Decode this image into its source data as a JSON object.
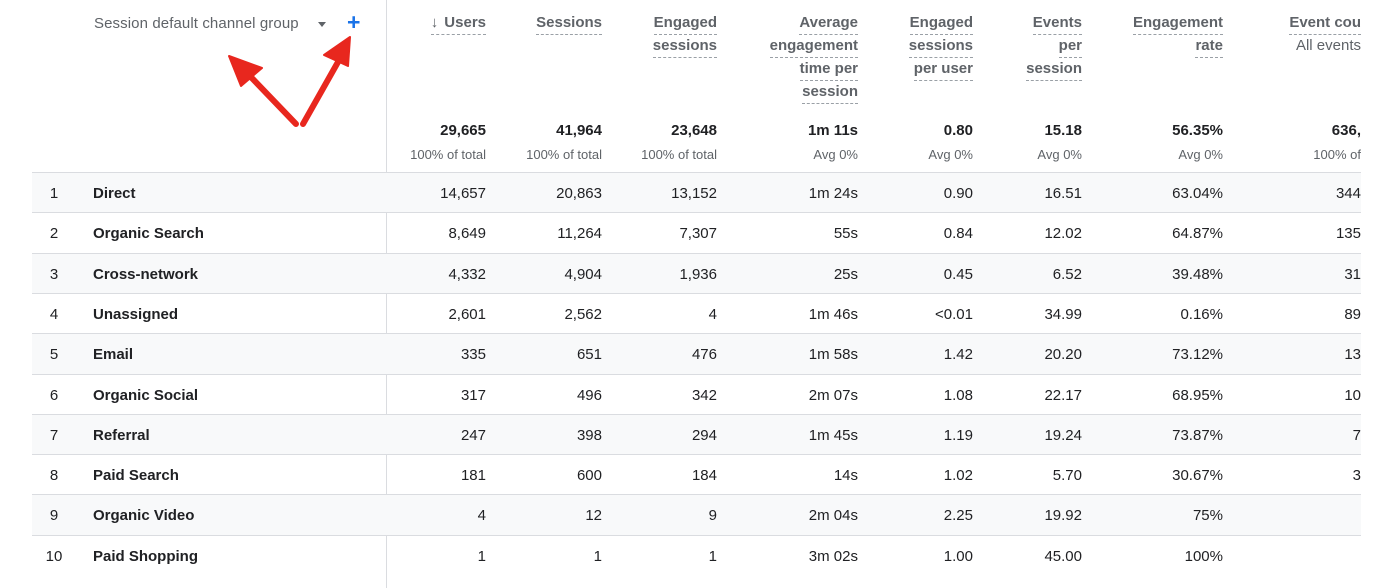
{
  "dimension_header": "Session default channel group",
  "metric_headers": [
    {
      "lines": [
        "Users"
      ],
      "sorted": true
    },
    {
      "lines": [
        "Sessions"
      ]
    },
    {
      "lines": [
        "Engaged",
        "sessions"
      ]
    },
    {
      "lines": [
        "Average",
        "engagement",
        "time per",
        "session"
      ]
    },
    {
      "lines": [
        "Engaged",
        "sessions",
        "per user"
      ]
    },
    {
      "lines": [
        "Events",
        "per",
        "session"
      ]
    },
    {
      "lines": [
        "Engagement",
        "rate"
      ]
    },
    {
      "lines": [
        "Event cou"
      ],
      "sub": "All events"
    }
  ],
  "totals": [
    {
      "value": "29,665",
      "sub": "100% of total"
    },
    {
      "value": "41,964",
      "sub": "100% of total"
    },
    {
      "value": "23,648",
      "sub": "100% of total"
    },
    {
      "value": "1m 11s",
      "sub": "Avg 0%"
    },
    {
      "value": "0.80",
      "sub": "Avg 0%"
    },
    {
      "value": "15.18",
      "sub": "Avg 0%"
    },
    {
      "value": "56.35%",
      "sub": "Avg 0%"
    },
    {
      "value": "636,",
      "sub": "100% of"
    }
  ],
  "rows": [
    {
      "index": "1",
      "name": "Direct",
      "values": [
        "14,657",
        "20,863",
        "13,152",
        "1m 24s",
        "0.90",
        "16.51",
        "63.04%",
        "344"
      ]
    },
    {
      "index": "2",
      "name": "Organic Search",
      "values": [
        "8,649",
        "11,264",
        "7,307",
        "55s",
        "0.84",
        "12.02",
        "64.87%",
        "135"
      ]
    },
    {
      "index": "3",
      "name": "Cross-network",
      "values": [
        "4,332",
        "4,904",
        "1,936",
        "25s",
        "0.45",
        "6.52",
        "39.48%",
        "31"
      ]
    },
    {
      "index": "4",
      "name": "Unassigned",
      "values": [
        "2,601",
        "2,562",
        "4",
        "1m 46s",
        "<0.01",
        "34.99",
        "0.16%",
        "89"
      ]
    },
    {
      "index": "5",
      "name": "Email",
      "values": [
        "335",
        "651",
        "476",
        "1m 58s",
        "1.42",
        "20.20",
        "73.12%",
        "13"
      ]
    },
    {
      "index": "6",
      "name": "Organic Social",
      "values": [
        "317",
        "496",
        "342",
        "2m 07s",
        "1.08",
        "22.17",
        "68.95%",
        "10"
      ]
    },
    {
      "index": "7",
      "name": "Referral",
      "values": [
        "247",
        "398",
        "294",
        "1m 45s",
        "1.19",
        "19.24",
        "73.87%",
        "7"
      ]
    },
    {
      "index": "8",
      "name": "Paid Search",
      "values": [
        "181",
        "600",
        "184",
        "14s",
        "1.02",
        "5.70",
        "30.67%",
        "3"
      ]
    },
    {
      "index": "9",
      "name": "Organic Video",
      "values": [
        "4",
        "12",
        "9",
        "2m 04s",
        "2.25",
        "19.92",
        "75%",
        ""
      ]
    },
    {
      "index": "10",
      "name": "Paid Shopping",
      "values": [
        "1",
        "1",
        "1",
        "3m 02s",
        "1.00",
        "45.00",
        "100%",
        ""
      ]
    }
  ],
  "colors": {
    "accent": "#1a73e8",
    "annotation": "#e8271e",
    "grid": "#dadce0"
  },
  "icons": {
    "sort": "arrow-down-icon",
    "dropdown": "caret-down-icon",
    "add": "plus-icon"
  }
}
